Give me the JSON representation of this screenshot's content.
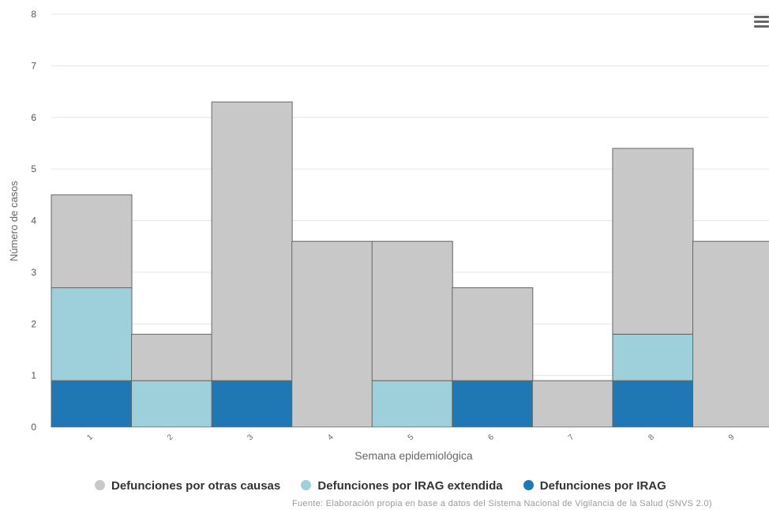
{
  "chart_data": {
    "type": "bar",
    "stacked": true,
    "categories": [
      "1",
      "2",
      "3",
      "4",
      "5",
      "6",
      "7",
      "8",
      "9"
    ],
    "series": [
      {
        "name": "Defunciones por IRAG",
        "color": "#1f77b4",
        "values": [
          0.9,
          0,
          0.9,
          0,
          0,
          0.9,
          0,
          0.9,
          0
        ]
      },
      {
        "name": "Defunciones por IRAG extendida",
        "color": "#9dd0db",
        "values": [
          1.8,
          0.9,
          0,
          0,
          0.9,
          0,
          0,
          0.9,
          0
        ]
      },
      {
        "name": "Defunciones por otras causas",
        "color": "#c8c8c8",
        "values": [
          1.8,
          0.9,
          5.4,
          3.6,
          2.7,
          1.8,
          0.9,
          3.6,
          3.6
        ]
      }
    ],
    "xlabel": "Semana epidemiológica",
    "ylabel": "Número de casos",
    "ylim": [
      0,
      8
    ],
    "yticks": [
      "0",
      "1",
      "2",
      "3",
      "4",
      "5",
      "6",
      "7",
      "8"
    ],
    "grid": true
  },
  "legend": [
    {
      "label": "Defunciones por otras causas",
      "color": "#c8c8c8"
    },
    {
      "label": "Defunciones por IRAG extendida",
      "color": "#9dd0db"
    },
    {
      "label": "Defunciones por IRAG",
      "color": "#1f77b4"
    }
  ],
  "source_text": "Fuente: Elaboración propia en base a datos del Sistema Nacional de Vigilancia de la Salud (SNVS 2.0)",
  "menu_icon": "hamburger-menu-icon"
}
